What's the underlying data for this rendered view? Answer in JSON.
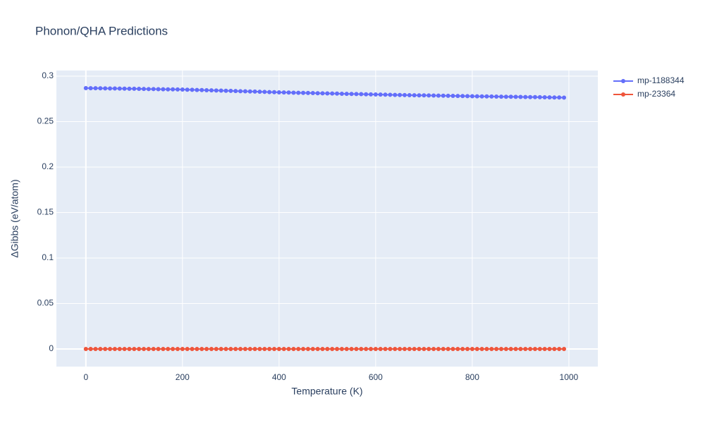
{
  "chart_data": {
    "type": "line",
    "title": "Phonon/QHA Predictions",
    "x_label": "Temperature (K)",
    "y_label": "ΔGibbs (eV/atom)",
    "x": [
      0,
      10,
      20,
      30,
      40,
      50,
      60,
      70,
      80,
      90,
      100,
      110,
      120,
      130,
      140,
      150,
      160,
      170,
      180,
      190,
      200,
      210,
      220,
      230,
      240,
      250,
      260,
      270,
      280,
      290,
      300,
      310,
      320,
      330,
      340,
      350,
      360,
      370,
      380,
      390,
      400,
      410,
      420,
      430,
      440,
      450,
      460,
      470,
      480,
      490,
      500,
      510,
      520,
      530,
      540,
      550,
      560,
      570,
      580,
      590,
      600,
      610,
      620,
      630,
      640,
      650,
      660,
      670,
      680,
      690,
      700,
      710,
      720,
      730,
      740,
      750,
      760,
      770,
      780,
      790,
      800,
      810,
      820,
      830,
      840,
      850,
      860,
      870,
      880,
      890,
      900,
      910,
      920,
      930,
      940,
      950,
      960,
      970,
      980,
      990
    ],
    "series": [
      {
        "name": "mp-1188344",
        "color": "#636efa",
        "values": [
          0.2868,
          0.2867,
          0.2867,
          0.2866,
          0.2865,
          0.2864,
          0.2864,
          0.2863,
          0.2862,
          0.2861,
          0.2861,
          0.286,
          0.2859,
          0.2858,
          0.2858,
          0.2857,
          0.2856,
          0.2855,
          0.2855,
          0.2854,
          0.2853,
          0.2851,
          0.285,
          0.2848,
          0.2847,
          0.2845,
          0.2844,
          0.2842,
          0.2841,
          0.2839,
          0.2838,
          0.2836,
          0.2834,
          0.2833,
          0.2831,
          0.283,
          0.2828,
          0.2827,
          0.2825,
          0.2824,
          0.2822,
          0.2821,
          0.282,
          0.2818,
          0.2817,
          0.2816,
          0.2815,
          0.2814,
          0.2812,
          0.2811,
          0.281,
          0.2809,
          0.2808,
          0.2806,
          0.2805,
          0.2804,
          0.2803,
          0.2802,
          0.28,
          0.2799,
          0.2798,
          0.2797,
          0.2796,
          0.2795,
          0.2794,
          0.2793,
          0.2792,
          0.2791,
          0.279,
          0.2789,
          0.2789,
          0.2788,
          0.2787,
          0.2786,
          0.2785,
          0.2784,
          0.2783,
          0.2782,
          0.2781,
          0.278,
          0.2779,
          0.2778,
          0.2777,
          0.2777,
          0.2776,
          0.2775,
          0.2774,
          0.2773,
          0.2773,
          0.2772,
          0.2771,
          0.277,
          0.2769,
          0.2769,
          0.2768,
          0.2767,
          0.2766,
          0.2765,
          0.2765,
          0.2764
        ]
      },
      {
        "name": "mp-23364",
        "color": "#ef553b",
        "values": [
          0,
          0,
          0,
          0,
          0,
          0,
          0,
          0,
          0,
          0,
          0,
          0,
          0,
          0,
          0,
          0,
          0,
          0,
          0,
          0,
          0,
          0,
          0,
          0,
          0,
          0,
          0,
          0,
          0,
          0,
          0,
          0,
          0,
          0,
          0,
          0,
          0,
          0,
          0,
          0,
          0,
          0,
          0,
          0,
          0,
          0,
          0,
          0,
          0,
          0,
          0,
          0,
          0,
          0,
          0,
          0,
          0,
          0,
          0,
          0,
          0,
          0,
          0,
          0,
          0,
          0,
          0,
          0,
          0,
          0,
          0,
          0,
          0,
          0,
          0,
          0,
          0,
          0,
          0,
          0,
          0,
          0,
          0,
          0,
          0,
          0,
          0,
          0,
          0,
          0,
          0,
          0,
          0,
          0,
          0,
          0,
          0,
          0,
          0,
          0
        ]
      }
    ],
    "xlim": [
      -61,
      1060
    ],
    "ylim": [
      -0.0194,
      0.3062
    ],
    "xticks": [
      0,
      200,
      400,
      600,
      800,
      1000
    ],
    "yticks": [
      0,
      0.05,
      0.1,
      0.15,
      0.2,
      0.25,
      0.3
    ],
    "grid": true,
    "legend": "top-right"
  }
}
